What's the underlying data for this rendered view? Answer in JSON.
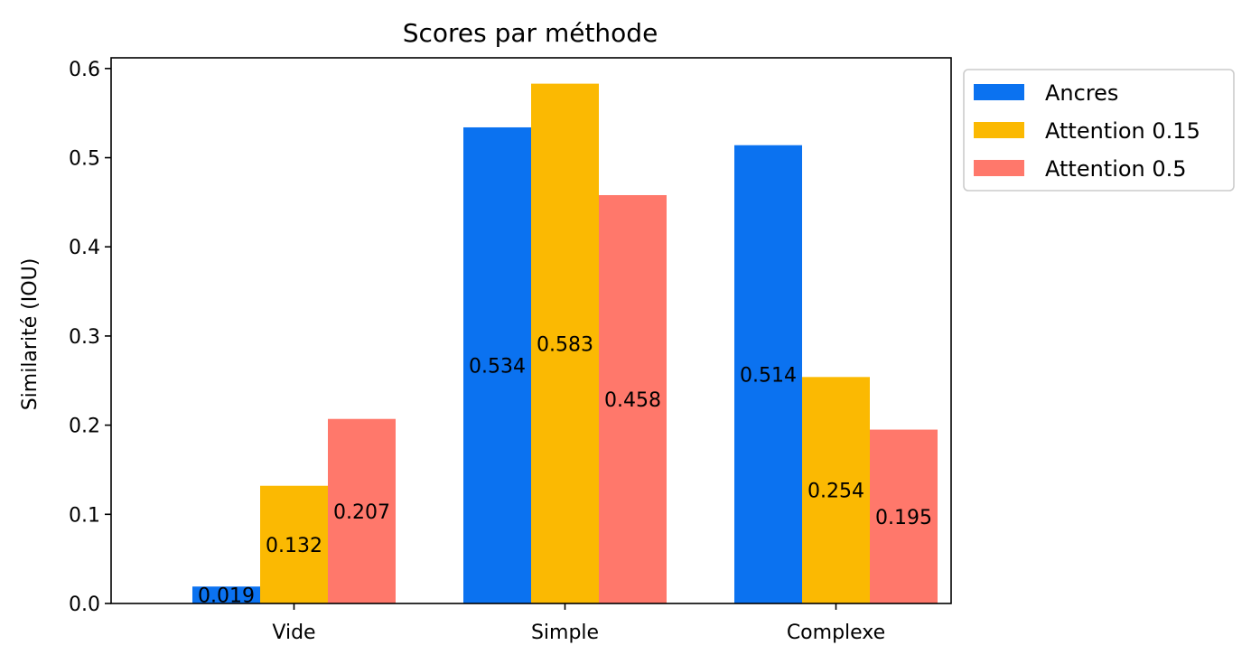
{
  "chart_data": {
    "type": "bar",
    "title": "Scores par méthode",
    "xlabel": "",
    "ylabel": "Similarité (IOU)",
    "categories": [
      "Vide",
      "Simple",
      "Complexe"
    ],
    "series": [
      {
        "name": "Ancres",
        "color": "#0b72f0",
        "values": [
          0.019,
          0.534,
          0.514
        ],
        "labels": [
          "0.019",
          "0.534",
          "0.514"
        ]
      },
      {
        "name": "Attention 0.15",
        "color": "#fbb902",
        "values": [
          0.132,
          0.583,
          0.254
        ],
        "labels": [
          "0.132",
          "0.583",
          "0.254"
        ]
      },
      {
        "name": "Attention 0.5",
        "color": "#ff786b",
        "values": [
          0.207,
          0.458,
          0.195
        ],
        "labels": [
          "0.207",
          "0.458",
          "0.195"
        ]
      }
    ],
    "ylim": [
      0,
      0.612
    ],
    "yticks": [
      0.0,
      0.1,
      0.2,
      0.3,
      0.4,
      0.5,
      0.6
    ],
    "ytick_labels": [
      "0.0",
      "0.1",
      "0.2",
      "0.3",
      "0.4",
      "0.5",
      "0.6"
    ],
    "grid": false,
    "legend_position": "outside-top-right",
    "bar_label_position": "center"
  }
}
